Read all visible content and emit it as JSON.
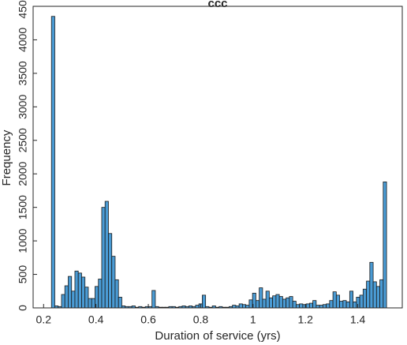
{
  "chart_data": {
    "type": "histogram",
    "title": "ccc",
    "x_label": "Duration of service (yrs)",
    "y_label": "Frequency",
    "color": "#4a9bd4",
    "bins": [
      0.23,
      0.2428,
      0.2556,
      0.2684,
      0.2812,
      0.294,
      0.3068,
      0.3196,
      0.3324,
      0.3452,
      0.358,
      0.3708,
      0.3836,
      0.3964,
      0.4092,
      0.422,
      0.4348,
      0.4476,
      0.4604,
      0.4732,
      0.486,
      0.4988,
      0.5116,
      0.5244,
      0.5372,
      0.55,
      0.5628,
      0.5756,
      0.5884,
      0.6012,
      0.614,
      0.6268,
      0.6396,
      0.6524,
      0.6652,
      0.678,
      0.6908,
      0.7036,
      0.7164,
      0.7292,
      0.742,
      0.7548,
      0.7676,
      0.7804,
      0.7932,
      0.806,
      0.8188,
      0.8316,
      0.8444,
      0.8572,
      0.87,
      0.8828,
      0.8956,
      0.9084,
      0.9212,
      0.934,
      0.9468,
      0.9596,
      0.9724,
      0.9852,
      0.998,
      1.0108,
      1.0236,
      1.0364,
      1.0492,
      1.062,
      1.0748,
      1.0876,
      1.1004,
      1.1132,
      1.126,
      1.1388,
      1.1516,
      1.1644,
      1.1772,
      1.19,
      1.2028,
      1.2156,
      1.2284,
      1.2412,
      1.254,
      1.2668,
      1.2796,
      1.2924,
      1.3052,
      1.318,
      1.3308,
      1.3436,
      1.3564,
      1.3692,
      1.382,
      1.3948,
      1.4076,
      1.4204,
      1.4332,
      1.446,
      1.4588,
      1.4716,
      1.4844,
      1.4972,
      1.51
    ],
    "values": [
      4350,
      30,
      20,
      200,
      330,
      470,
      250,
      550,
      520,
      460,
      310,
      140,
      140,
      320,
      430,
      1500,
      1590,
      1110,
      770,
      420,
      160,
      30,
      20,
      20,
      30,
      10,
      20,
      10,
      20,
      20,
      260,
      20,
      10,
      10,
      10,
      20,
      20,
      10,
      20,
      30,
      20,
      30,
      20,
      40,
      60,
      190,
      20,
      10,
      30,
      10,
      20,
      10,
      10,
      20,
      40,
      30,
      60,
      50,
      40,
      120,
      220,
      110,
      300,
      130,
      250,
      150,
      180,
      200,
      170,
      130,
      150,
      170,
      100,
      50,
      60,
      50,
      60,
      70,
      110,
      40,
      40,
      50,
      60,
      110,
      240,
      190,
      100,
      110,
      90,
      250,
      90,
      160,
      190,
      280,
      400,
      680,
      390,
      320,
      420,
      1880
    ],
    "xlim": [
      0.16,
      1.57
    ],
    "ylim": [
      0,
      4500
    ],
    "xticks": [
      0.2,
      0.4,
      0.6,
      0.8,
      1,
      1.2,
      1.4
    ],
    "yticks": [
      0,
      500,
      1000,
      1500,
      2000,
      2500,
      3000,
      3500,
      4000,
      4500
    ]
  }
}
